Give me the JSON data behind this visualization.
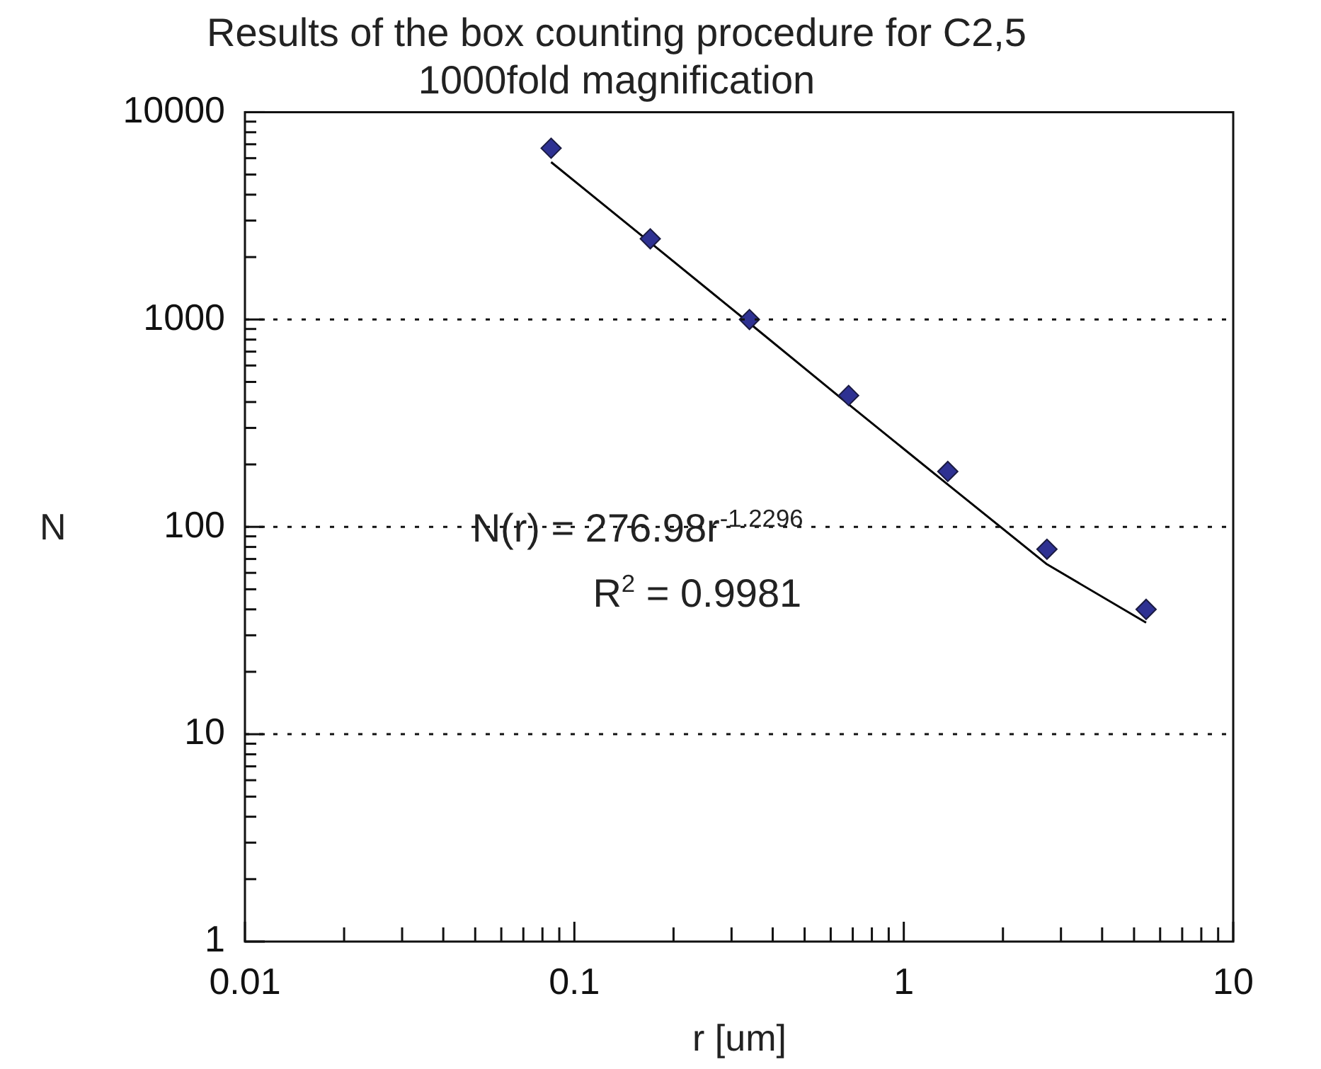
{
  "chart_data": {
    "type": "scatter",
    "title": "Results of the box counting procedure for C2,5",
    "subtitle": "1000fold magnification",
    "xlabel": "r [um]",
    "ylabel": "N",
    "log": "xy",
    "grid": "y",
    "legend": false,
    "marker": "diamond",
    "xlim": [
      0.01,
      10
    ],
    "xticks": [
      0.01,
      {
        "value": 0.02,
        "label": null
      },
      {
        "value": 0.03,
        "label": null
      },
      {
        "value": 0.04,
        "label": null
      },
      {
        "value": 0.05,
        "label": null
      },
      {
        "value": 0.06,
        "label": null
      },
      {
        "value": 0.07,
        "label": null
      },
      {
        "value": 0.08,
        "label": null
      },
      {
        "value": 0.09,
        "label": null
      },
      0.1,
      {
        "value": 0.2,
        "label": null
      },
      {
        "value": 0.3,
        "label": null
      },
      {
        "value": 0.4,
        "label": null
      },
      {
        "value": 0.5,
        "label": null
      },
      {
        "value": 0.6,
        "label": null
      },
      {
        "value": 0.7,
        "label": null
      },
      {
        "value": 0.8,
        "label": null
      },
      {
        "value": 0.9,
        "label": null
      },
      1,
      {
        "value": 2,
        "label": null
      },
      {
        "value": 3,
        "label": null
      },
      {
        "value": 4,
        "label": null
      },
      {
        "value": 5,
        "label": null
      },
      {
        "value": 6,
        "label": null
      },
      {
        "value": 7,
        "label": null
      },
      {
        "value": 8,
        "label": null
      },
      {
        "value": 9,
        "label": null
      },
      10
    ],
    "ylim": [
      1,
      10000
    ],
    "yticks": [
      1,
      {
        "value": 2,
        "label": null
      },
      {
        "value": 3,
        "label": null
      },
      {
        "value": 4,
        "label": null
      },
      {
        "value": 5,
        "label": null
      },
      {
        "value": 6,
        "label": null
      },
      {
        "value": 7,
        "label": null
      },
      {
        "value": 8,
        "label": null
      },
      {
        "value": 9,
        "label": null
      },
      10,
      {
        "value": 20,
        "label": null
      },
      {
        "value": 30,
        "label": null
      },
      {
        "value": 40,
        "label": null
      },
      {
        "value": 50,
        "label": null
      },
      {
        "value": 60,
        "label": null
      },
      {
        "value": 70,
        "label": null
      },
      {
        "value": 80,
        "label": null
      },
      {
        "value": 90,
        "label": null
      },
      100,
      {
        "value": 200,
        "label": null
      },
      {
        "value": 300,
        "label": null
      },
      {
        "value": 400,
        "label": null
      },
      {
        "value": 500,
        "label": null
      },
      {
        "value": 600,
        "label": null
      },
      {
        "value": 700,
        "label": null
      },
      {
        "value": 800,
        "label": null
      },
      {
        "value": 900,
        "label": null
      },
      1000,
      {
        "value": 2000,
        "label": null
      },
      {
        "value": 3000,
        "label": null
      },
      {
        "value": 4000,
        "label": null
      },
      {
        "value": 5000,
        "label": null
      },
      {
        "value": 6000,
        "label": null
      },
      {
        "value": 7000,
        "label": null
      },
      {
        "value": 8000,
        "label": null
      },
      {
        "value": 9000,
        "label": null
      },
      10000
    ],
    "series": [
      {
        "type": "line",
        "color": "#000000",
        "marker": "none",
        "x": [
          0.085,
          0.17,
          0.34,
          0.68,
          1.36,
          2.72,
          5.44
        ],
        "values": [
          5740,
          2350,
          960,
          390,
          160,
          66,
          34.5
        ]
      },
      {
        "type": "scatter",
        "color": "#2e3192",
        "x": [
          0.085,
          0.17,
          0.34,
          0.68,
          1.36,
          2.72,
          5.44
        ],
        "values": [
          6700,
          2450,
          1000,
          430,
          185,
          78,
          40
        ]
      }
    ],
    "annotations": [
      "N(r) = 276.98r$^{-1.2296}$",
      "R$^{2}$ = 0.9981"
    ]
  }
}
